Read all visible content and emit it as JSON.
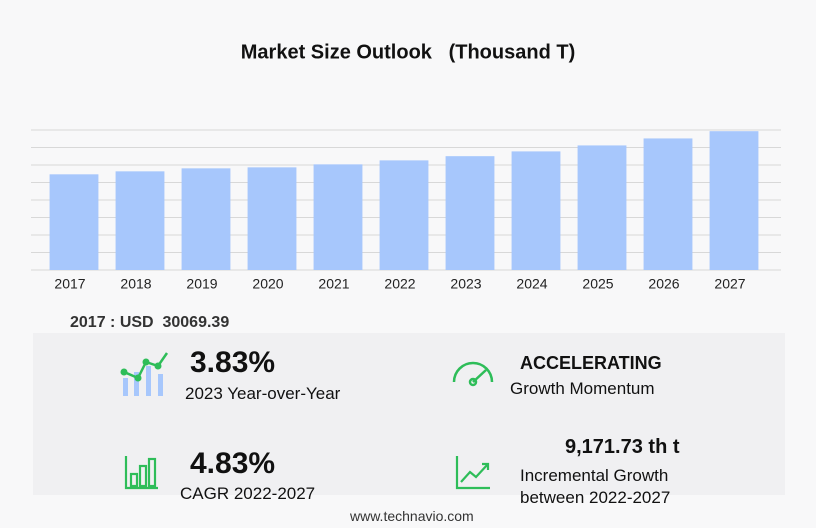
{
  "chart_data": {
    "type": "bar",
    "title": "Market Size Outlook   (Thousand T)",
    "categories": [
      "2017",
      "2018",
      "2019",
      "2020",
      "2021",
      "2022",
      "2023",
      "2024",
      "2025",
      "2026",
      "2027"
    ],
    "values": [
      30069.39,
      31009,
      31950,
      32263,
      33203,
      34456,
      35775,
      37275,
      39154,
      41347,
      43628
    ],
    "color": "#a7c7fc",
    "ylim": [
      0,
      44000
    ],
    "grid": true,
    "currency": "USD"
  },
  "stats": {
    "yoy_value": "3.83%",
    "yoy_label": "2023 Year-over-Year",
    "momentum_value": "ACCELERATING",
    "momentum_label": "Growth Momentum",
    "cagr_value": "4.83%",
    "cagr_label": "CAGR 2022-2027",
    "incremental_value": "9,171.73 th t",
    "incremental_label_1": "Incremental Growth",
    "incremental_label_2": "between 2022-2027"
  },
  "footer": "www.technavio.com"
}
